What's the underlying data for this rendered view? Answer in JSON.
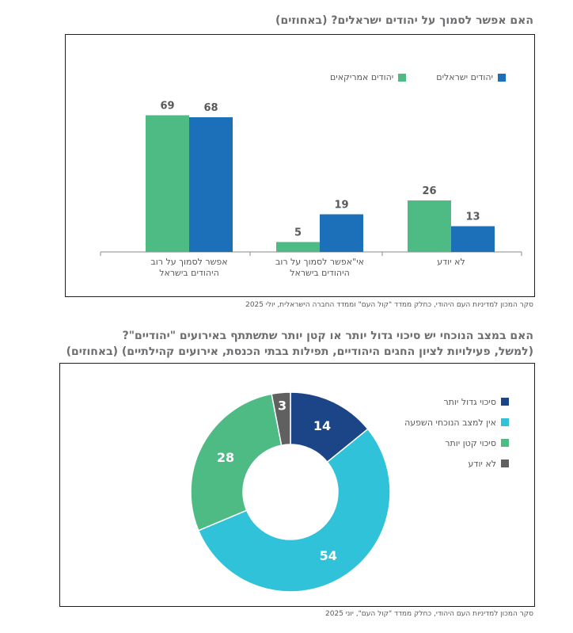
{
  "chart1": {
    "title": "האם אפשר לסמוך על יהודים ישראלים? (באחוזים)",
    "source": "סקר המכון למדיניות העם היהודי, כחלק ממדד \"קול העם\" וממדד החברה הישראלית, יולי 2025"
  },
  "chart2": {
    "title_line1": "האם במצב הנוכחי יש סיכוי גדול יותר או קטן יותר שתשתתף באירועים \"יהודיים\"?",
    "title_line2": "(למשל, פעילויות לציון החגים היהודיים, תפילות בבתי הכנסת, אירועים קהילתיים) (באחוזים)",
    "source": "סקר המכון למדיניות העם היהודי, כחלק ממדד \"קול העם\", יוני 2025"
  },
  "chart_data": [
    {
      "type": "bar",
      "title": "האם אפשר לסמוך על יהודים ישראלים? (באחוזים)",
      "categories": [
        [
          "אפשר לסמוך על רוב",
          "היהודים בישראל"
        ],
        [
          "אי\"אפשר לסמוך על רוב",
          "היהודים בישראל"
        ],
        [
          "לא יודע"
        ]
      ],
      "series": [
        {
          "name": "יהודים אמריקאים",
          "color": "#4dbb83",
          "values": [
            69,
            5,
            26
          ]
        },
        {
          "name": "יהודים ישראלים",
          "color": "#1b70b9",
          "values": [
            68,
            19,
            13
          ]
        }
      ],
      "ylim": [
        0,
        80
      ],
      "grid": false,
      "legend": "top-right"
    },
    {
      "type": "pie",
      "title": "האם במצב הנוכחי יש סיכוי גדול יותר או קטן יותר שתשתתף באירועים \"יהודיים\"?",
      "labels": [
        "סיכוי גדול יותר",
        "אין למצב הנוכחי השפעה",
        "סיכוי קטן יותר",
        "לא יודע"
      ],
      "values": [
        14,
        54,
        28,
        3
      ],
      "colors": [
        "#1c4587",
        "#2fc2d8",
        "#4dbb83",
        "#606060"
      ],
      "legend": "right"
    }
  ]
}
